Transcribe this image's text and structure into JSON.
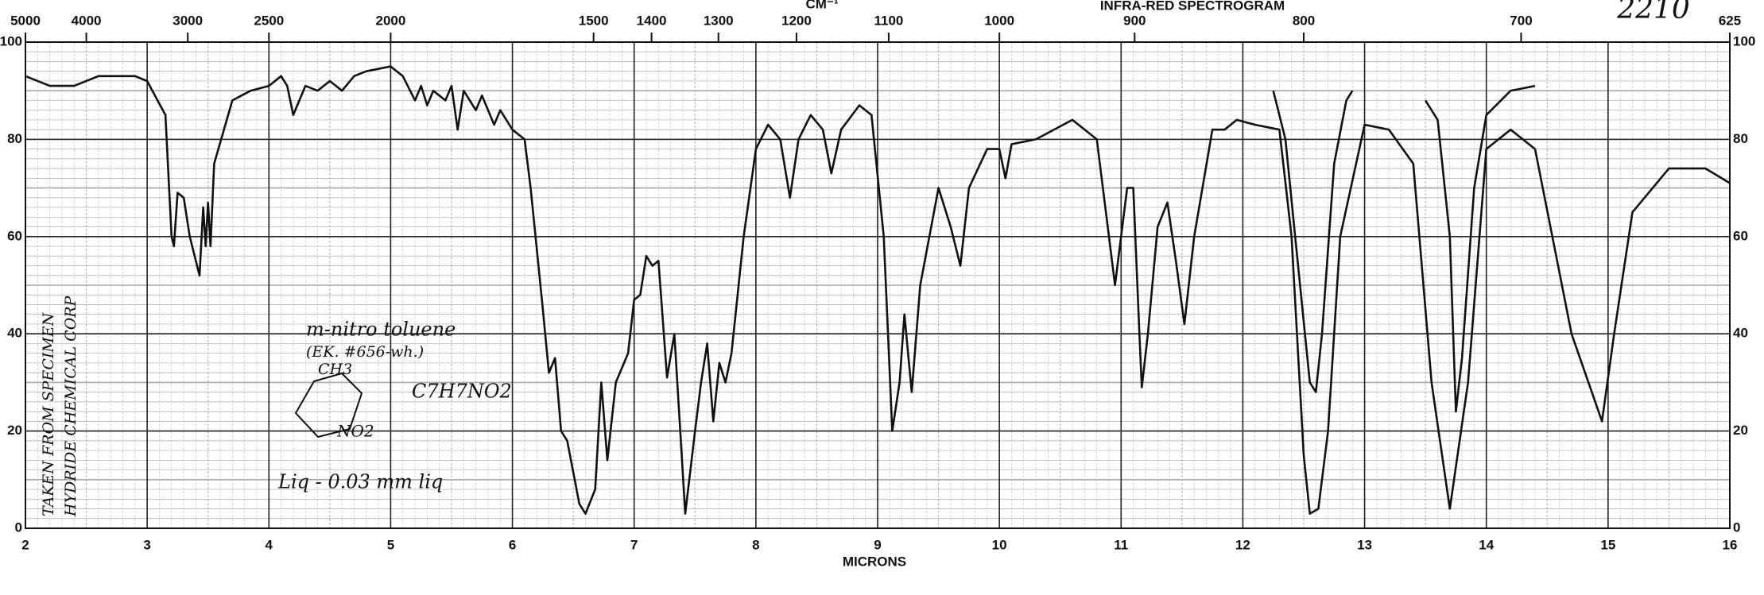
{
  "chart_data": {
    "type": "line",
    "title": "INFRA-RED SPECTROGRAM",
    "top_axis_label": "CM⁻¹",
    "xlabel": "MICRONS",
    "sample_number": "2210",
    "annotations": {
      "name": "m-nitro toluene",
      "code": "(EK. #656-wh.)",
      "formula": "C7H7NO2",
      "group_ch3": "CH3",
      "group_no2": "NO2",
      "phase": "Liq - 0.03 mm liq",
      "source_1": "TAKEN FROM SPECIMEN",
      "source_2": "HYDRIDE CHEMICAL CORP"
    },
    "xlim": [
      2,
      16
    ],
    "xticks": [
      2,
      3,
      4,
      5,
      6,
      7,
      8,
      9,
      10,
      11,
      12,
      13,
      14,
      15,
      16
    ],
    "x2ticks": [
      5000,
      4000,
      3000,
      2500,
      2000,
      1500,
      1400,
      1300,
      1200,
      1100,
      1000,
      900,
      800,
      700,
      625
    ],
    "ylim": [
      0,
      100
    ],
    "yticks": [
      0,
      20,
      40,
      60,
      80,
      100
    ],
    "grid": true,
    "series": [
      {
        "color": "#111111",
        "x": [
          2,
          2.2,
          2.4,
          2.6,
          2.9,
          3.0,
          3.15,
          3.2,
          3.22,
          3.25,
          3.3,
          3.35,
          3.43,
          3.46,
          3.48,
          3.5,
          3.52,
          3.55,
          3.7,
          3.85,
          4.0,
          4.1,
          4.15,
          4.2,
          4.3,
          4.4,
          4.5,
          4.6,
          4.7,
          4.8,
          5.0,
          5.1,
          5.2,
          5.25,
          5.3,
          5.35,
          5.45,
          5.5,
          5.55,
          5.6,
          5.7,
          5.75,
          5.85,
          5.9,
          6.0,
          6.1,
          6.15,
          6.25,
          6.3,
          6.35,
          6.4,
          6.45,
          6.55,
          6.6,
          6.68,
          6.73,
          6.78,
          6.85,
          6.95,
          7.0,
          7.05,
          7.1,
          7.15,
          7.2,
          7.27,
          7.33,
          7.42,
          7.5,
          7.55,
          7.6,
          7.65,
          7.7,
          7.75,
          7.8,
          7.9,
          8.0,
          8.1,
          8.2,
          8.28,
          8.35,
          8.45,
          8.55,
          8.62,
          8.7,
          8.85,
          8.95,
          9.05,
          9.12,
          9.18,
          9.22,
          9.28,
          9.35,
          9.5,
          9.6,
          9.68,
          9.75,
          9.9,
          10.0,
          10.05,
          10.1,
          10.3,
          10.6,
          10.8,
          10.9,
          10.95,
          11.05,
          11.1,
          11.15,
          11.17,
          11.22,
          11.3,
          11.38,
          11.45,
          11.52,
          11.6,
          11.75,
          11.85,
          11.95,
          12.1,
          12.3,
          12.4,
          12.5,
          12.55,
          12.62,
          12.7,
          12.8,
          13.0,
          13.2,
          13.4,
          13.55,
          13.7,
          13.85,
          14.0,
          14.2,
          14.4,
          14.7,
          14.95,
          15.05,
          15.2,
          15.5,
          15.8,
          16
        ],
        "values": [
          93,
          91,
          91,
          93,
          93,
          92,
          85,
          60,
          58,
          69,
          68,
          60,
          52,
          66,
          58,
          67,
          58,
          75,
          88,
          90,
          91,
          93,
          91,
          85,
          91,
          90,
          92,
          90,
          93,
          94,
          95,
          93,
          88,
          91,
          87,
          90,
          88,
          91,
          82,
          90,
          86,
          89,
          83,
          86,
          82,
          80,
          70,
          45,
          32,
          35,
          20,
          18,
          5,
          3,
          8,
          30,
          14,
          30,
          36,
          47,
          48,
          56,
          54,
          55,
          31,
          40,
          3,
          20,
          30,
          38,
          22,
          34,
          30,
          36,
          60,
          78,
          83,
          80,
          68,
          80,
          85,
          82,
          73,
          82,
          87,
          85,
          60,
          20,
          30,
          44,
          28,
          50,
          70,
          62,
          54,
          70,
          78,
          78,
          72,
          79,
          80,
          84,
          80,
          60,
          50,
          70,
          70,
          40,
          29,
          40,
          62,
          67,
          55,
          42,
          60,
          82,
          82,
          84,
          83,
          82,
          60,
          15,
          3,
          4,
          20,
          60,
          83,
          82,
          75,
          30,
          4,
          30,
          78,
          82,
          78,
          40,
          22,
          40,
          65,
          74,
          74,
          71
        ]
      },
      {
        "color": "#111111",
        "x": [
          12.25,
          12.35,
          12.45,
          12.55,
          12.6,
          12.65,
          12.75,
          12.85,
          12.9,
          13.2,
          13.5,
          13.6,
          13.7,
          13.75,
          13.8,
          13.9,
          14.0,
          14.2,
          14.4
        ],
        "values": [
          90,
          80,
          55,
          30,
          28,
          40,
          75,
          88,
          90,
          null,
          88,
          84,
          60,
          24,
          35,
          70,
          85,
          90,
          91
        ]
      }
    ]
  }
}
